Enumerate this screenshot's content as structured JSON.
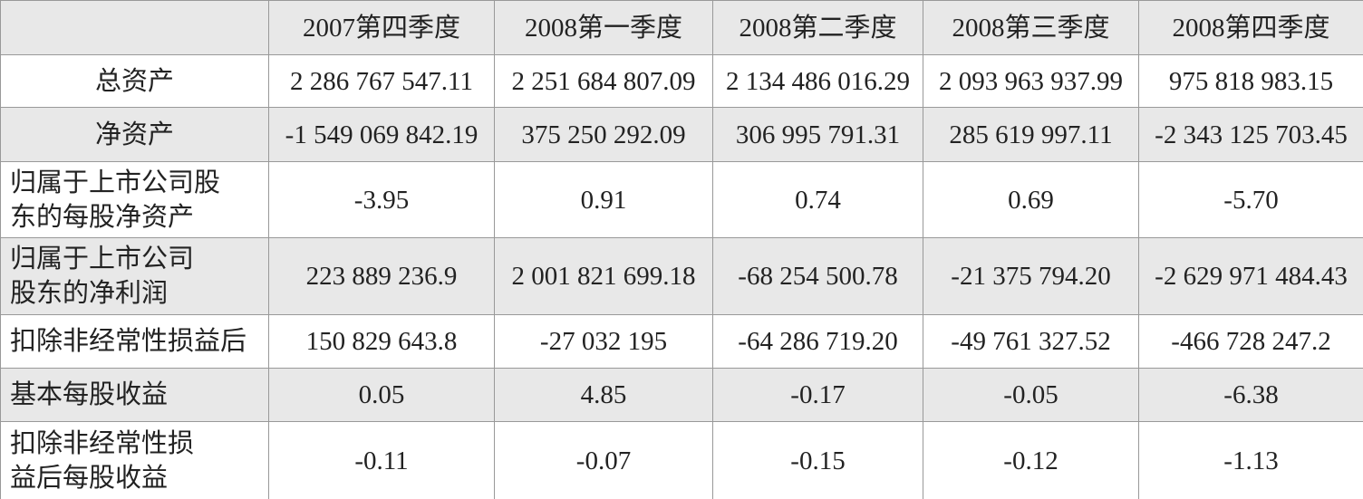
{
  "table": {
    "columns": [
      "2007第四季度",
      "2008第一季度",
      "2008第二季度",
      "2008第三季度",
      "2008第四季度"
    ],
    "rows": [
      {
        "label": [
          "总资产"
        ],
        "cells": [
          "2 286 767 547.11",
          "2 251 684 807.09",
          "2 134 486 016.29",
          "2 093 963 937.99",
          "975 818 983.15"
        ]
      },
      {
        "label": [
          "净资产"
        ],
        "cells": [
          "-1 549 069 842.19",
          "375 250 292.09",
          "306 995 791.31",
          "285 619 997.11",
          "-2 343 125 703.45"
        ]
      },
      {
        "label": [
          "归属于上市公司股",
          "东的每股净资产"
        ],
        "cells": [
          "-3.95",
          "0.91",
          "0.74",
          "0.69",
          "-5.70"
        ]
      },
      {
        "label": [
          "归属于上市公司",
          "股东的净利润"
        ],
        "cells": [
          "223 889 236.9",
          "2 001 821 699.18",
          "-68 254 500.78",
          "-21 375 794.20",
          "-2 629 971 484.43"
        ]
      },
      {
        "label": [
          "扣除非经常性损益后"
        ],
        "cells": [
          "150 829 643.8",
          "-27 032 195",
          "-64 286 719.20",
          "-49 761 327.52",
          "-466 728 247.2"
        ]
      },
      {
        "label": [
          "基本每股收益"
        ],
        "cells": [
          "0.05",
          "4.85",
          "-0.17",
          "-0.05",
          "-6.38"
        ]
      },
      {
        "label": [
          "扣除非经常性损",
          "益后每股收益"
        ],
        "cells": [
          "-0.11",
          "-0.07",
          "-0.15",
          "-0.12",
          "-1.13"
        ]
      }
    ]
  }
}
